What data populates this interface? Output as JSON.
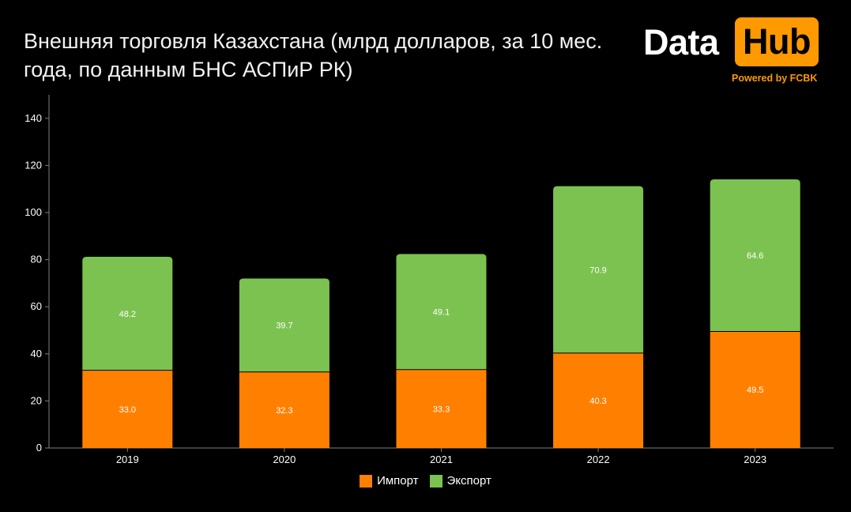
{
  "header": {
    "title_line1": "Внешняя торговля Казахстана (млрд долларов, за 10 мес.",
    "title_line2": "года, по данным БНС АСПиР РК)"
  },
  "logo": {
    "word1": "Data",
    "word2": "Hub",
    "tagline": "Powered by FCBK"
  },
  "colors": {
    "background": "#000000",
    "import": "#ff8000",
    "export": "#7cc250",
    "logo_accent": "#ff9900",
    "axis": "#7f7f7f",
    "text": "#ffffff"
  },
  "chart_data": {
    "type": "bar",
    "stacked": true,
    "title": "Внешняя торговля Казахстана (млрд долларов, за 10 мес. года, по данным БНС АСПиР РК)",
    "categories": [
      "2019",
      "2020",
      "2021",
      "2022",
      "2023"
    ],
    "series": [
      {
        "name": "Импорт",
        "color": "#ff8000",
        "values": [
          33.0,
          32.3,
          33.3,
          40.3,
          49.5
        ],
        "labels": [
          "33.0",
          "32.3",
          "33.3",
          "40.3",
          "49.5"
        ]
      },
      {
        "name": "Экспорт",
        "color": "#7cc250",
        "values": [
          48.2,
          39.7,
          49.1,
          70.9,
          64.6
        ],
        "labels": [
          "48.2",
          "39.7",
          "49.1",
          "70.9",
          "64.6"
        ]
      }
    ],
    "ylim": [
      0,
      150
    ],
    "yticks": [
      "0",
      "20",
      "40",
      "60",
      "80",
      "100",
      "120",
      "140"
    ],
    "grid": false,
    "legend": "bottom-center"
  }
}
